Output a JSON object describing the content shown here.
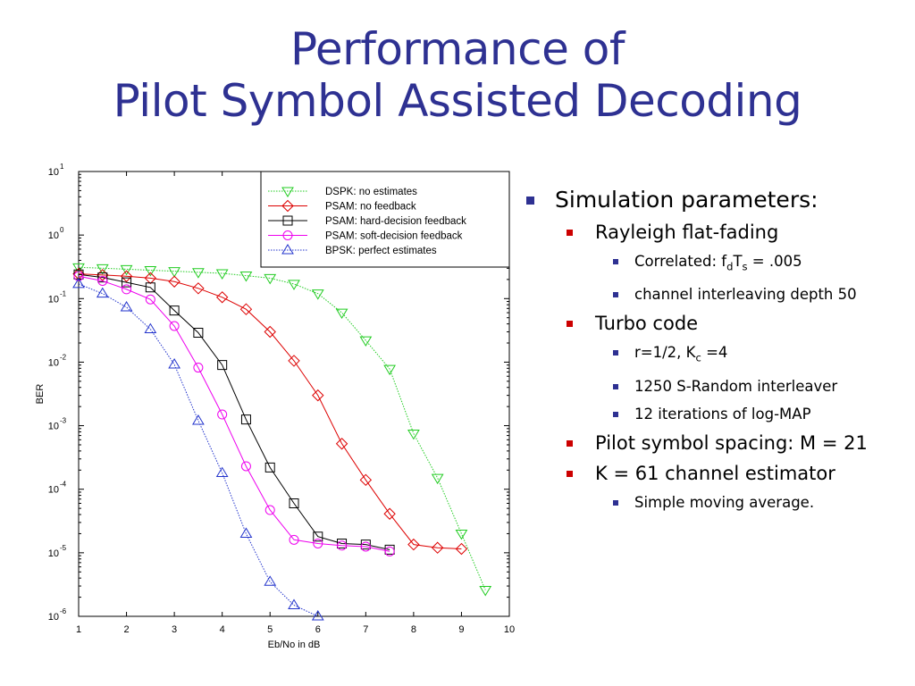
{
  "slide": {
    "title_line1": "Performance of",
    "title_line2": "Pilot Symbol Assisted Decoding"
  },
  "bullets": {
    "simulation": "Simulation parameters:",
    "rayleigh": "Rayleigh flat-fading",
    "correlated_prefix": "Correlated: f",
    "correlated_sub1": "d",
    "correlated_mid": "T",
    "correlated_sub2": "s",
    "correlated_suffix": " = .005",
    "interleaving": "channel interleaving depth 50",
    "turbo": "Turbo code",
    "rate_prefix": "r=1/2, K",
    "rate_sub": "c",
    "rate_suffix": " =4",
    "srandom": "1250 S-Random interleaver",
    "iterations": "12 iterations of log-MAP",
    "pilot_spacing": "Pilot symbol spacing: M = 21",
    "estimator": "K = 61 channel estimator",
    "moving_avg": "Simple moving average."
  },
  "chart_data": {
    "type": "line",
    "xlabel": "Eb/No in dB",
    "ylabel": "BER",
    "xlim": [
      1,
      10
    ],
    "ylim_log10": [
      -6,
      1
    ],
    "y_scale": "log",
    "x_ticks": [
      "1",
      "2",
      "3",
      "4",
      "5",
      "6",
      "7",
      "8",
      "9",
      "10"
    ],
    "y_tick_exponents": [
      "1",
      "0",
      "-1",
      "-2",
      "-3",
      "-4",
      "-5",
      "-6"
    ],
    "y_tick_base": "10",
    "grid": false,
    "legend_position": "top-right",
    "series": [
      {
        "name": "DSPK: no estimates",
        "color": "#22cc22",
        "marker": "triangle-down",
        "line": "dotted",
        "x": [
          1,
          1.5,
          2,
          2.5,
          3,
          3.5,
          4,
          4.5,
          5,
          5.5,
          6,
          6.5,
          7,
          7.5,
          8,
          8.5,
          9,
          9.5
        ],
        "y": [
          0.31,
          0.3,
          0.29,
          0.28,
          0.27,
          0.26,
          0.25,
          0.23,
          0.21,
          0.17,
          0.12,
          0.06,
          0.022,
          0.0078,
          0.00075,
          0.00015,
          2e-05,
          2.6e-06
        ]
      },
      {
        "name": "PSAM: no feedback",
        "color": "#dd0000",
        "marker": "diamond",
        "line": "solid",
        "x": [
          1,
          1.5,
          2,
          2.5,
          3,
          3.5,
          4,
          4.5,
          5,
          5.5,
          6,
          6.5,
          7,
          7.5,
          8,
          8.5,
          9
        ],
        "y": [
          0.245,
          0.235,
          0.225,
          0.21,
          0.185,
          0.145,
          0.105,
          0.068,
          0.03,
          0.0105,
          0.003,
          0.00052,
          0.00014,
          4.1e-05,
          1.35e-05,
          1.2e-05,
          1.15e-05
        ]
      },
      {
        "name": "PSAM: hard-decision feedback",
        "color": "#000000",
        "marker": "square",
        "line": "solid",
        "x": [
          1,
          1.5,
          2,
          2.5,
          3,
          3.5,
          4,
          4.5,
          5,
          5.5,
          6,
          6.5,
          7,
          7.5
        ],
        "y": [
          0.24,
          0.215,
          0.18,
          0.15,
          0.065,
          0.029,
          0.009,
          0.00125,
          0.00022,
          6e-05,
          1.8e-05,
          1.4e-05,
          1.35e-05,
          1.12e-05
        ]
      },
      {
        "name": "PSAM: soft-decision feedback",
        "color": "#ee00ee",
        "marker": "circle",
        "line": "solid",
        "x": [
          1,
          1.5,
          2,
          2.5,
          3,
          3.5,
          4,
          4.5,
          5,
          5.5,
          6,
          6.5,
          7,
          7.5
        ],
        "y": [
          0.225,
          0.19,
          0.14,
          0.097,
          0.037,
          0.0082,
          0.0015,
          0.00023,
          4.7e-05,
          1.6e-05,
          1.4e-05,
          1.3e-05,
          1.25e-05,
          1.05e-05
        ]
      },
      {
        "name": "BPSK: perfect estimates",
        "color": "#2233cc",
        "marker": "triangle-up",
        "line": "dotted",
        "x": [
          1,
          1.5,
          2,
          2.5,
          3,
          3.5,
          4,
          4.5,
          5,
          5.5,
          6
        ],
        "y": [
          0.17,
          0.12,
          0.073,
          0.033,
          0.0092,
          0.0012,
          0.00018,
          2e-05,
          3.5e-06,
          1.5e-06,
          1e-06
        ]
      }
    ]
  }
}
